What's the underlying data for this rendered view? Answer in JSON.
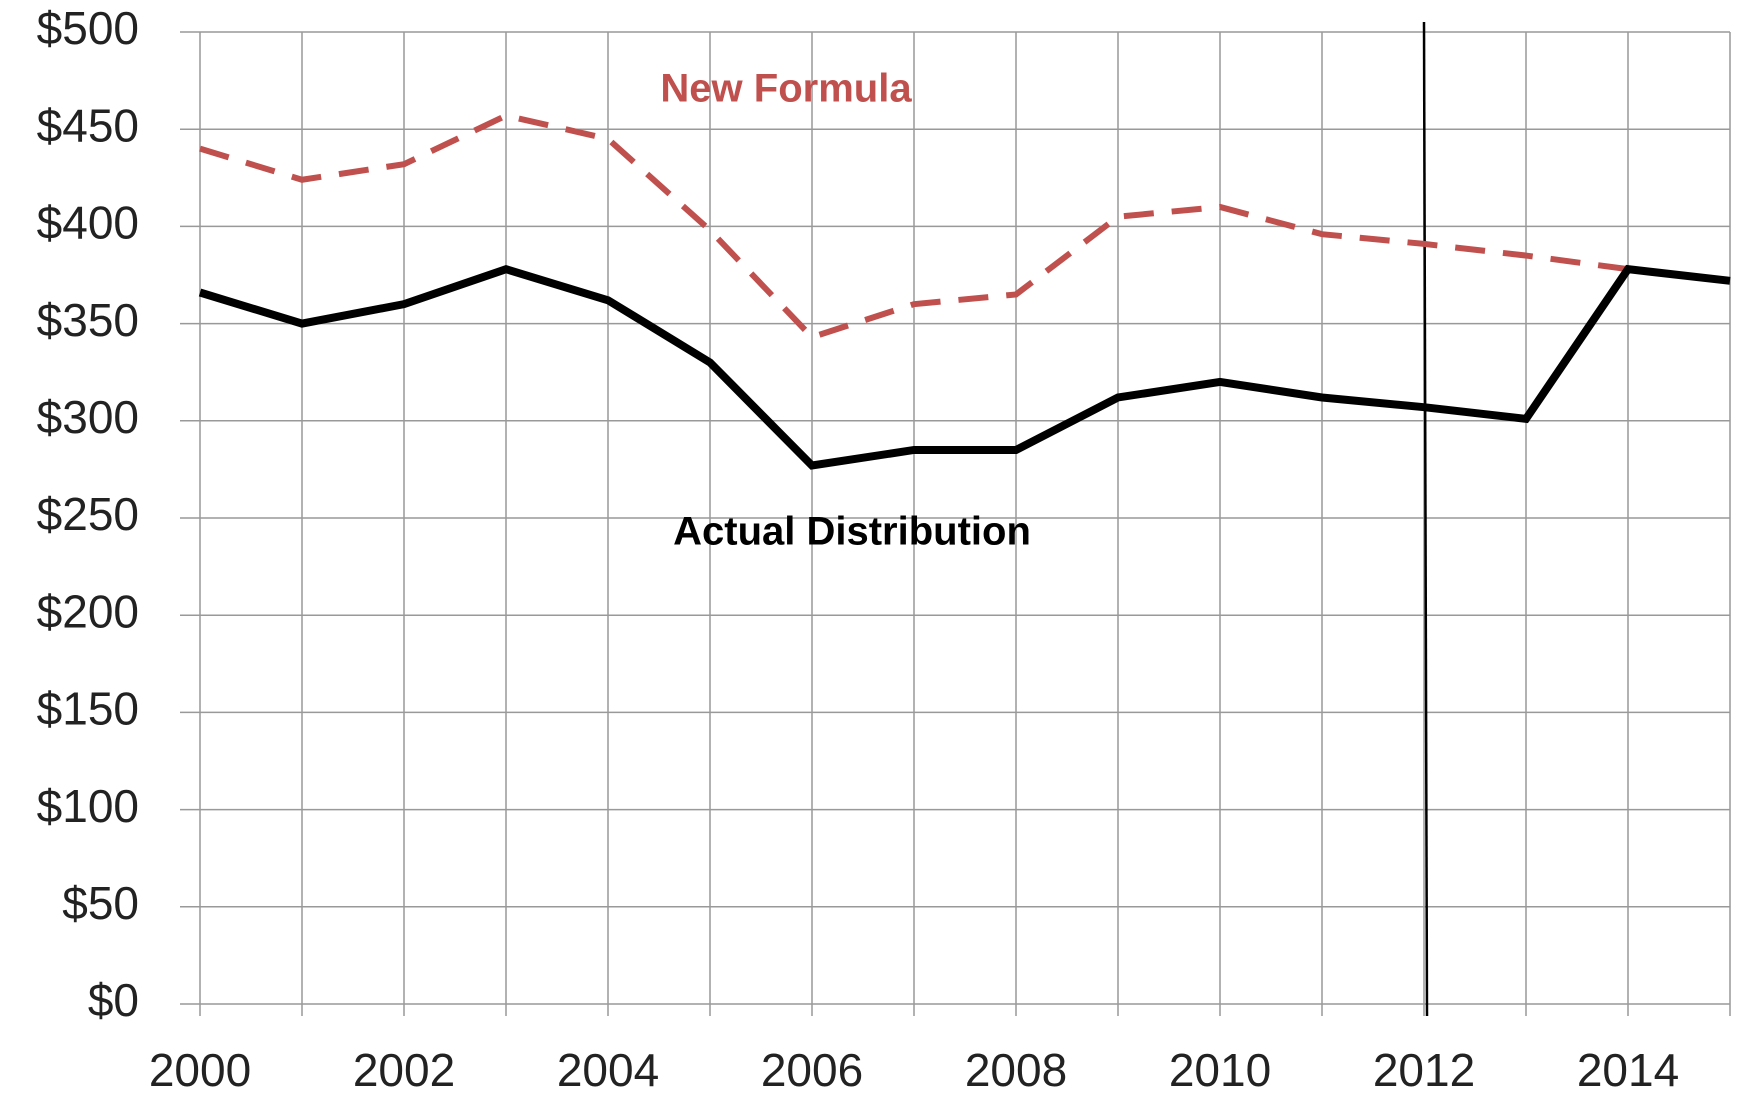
{
  "chart_data": {
    "type": "line",
    "x": [
      2000,
      2001,
      2002,
      2003,
      2004,
      2005,
      2006,
      2007,
      2008,
      2009,
      2010,
      2011,
      2012,
      2013,
      2014,
      2015
    ],
    "series": [
      {
        "name": "New Formula",
        "color": "#c0504d",
        "dashed": true,
        "values": [
          440,
          424,
          432,
          457,
          445,
          398,
          343,
          360,
          365,
          405,
          410,
          396,
          391,
          385,
          378,
          372
        ]
      },
      {
        "name": "Actual Distribution",
        "color": "#000000",
        "dashed": false,
        "values": [
          366,
          350,
          360,
          378,
          362,
          330,
          277,
          285,
          285,
          312,
          320,
          312,
          307,
          301,
          378,
          372
        ]
      }
    ],
    "xlim": [
      2000,
      2015
    ],
    "xticks": [
      2000,
      2002,
      2004,
      2006,
      2008,
      2010,
      2012,
      2014
    ],
    "xminor_ticks": [
      2001,
      2003,
      2005,
      2007,
      2009,
      2011,
      2013,
      2015
    ],
    "ylim": [
      0,
      500
    ],
    "yticks": [
      {
        "value": 0,
        "label": "$0"
      },
      {
        "value": 50,
        "label": "$50"
      },
      {
        "value": 100,
        "label": "$100"
      },
      {
        "value": 150,
        "label": "$150"
      },
      {
        "value": 200,
        "label": "$200"
      },
      {
        "value": 250,
        "label": "$250"
      },
      {
        "value": 300,
        "label": "$300"
      },
      {
        "value": 350,
        "label": "$350"
      },
      {
        "value": 400,
        "label": "$400"
      },
      {
        "value": 450,
        "label": "$450"
      },
      {
        "value": 500,
        "label": "$500"
      }
    ],
    "grid": true,
    "reference_line": {
      "x": 2012,
      "color": "#000000"
    }
  }
}
